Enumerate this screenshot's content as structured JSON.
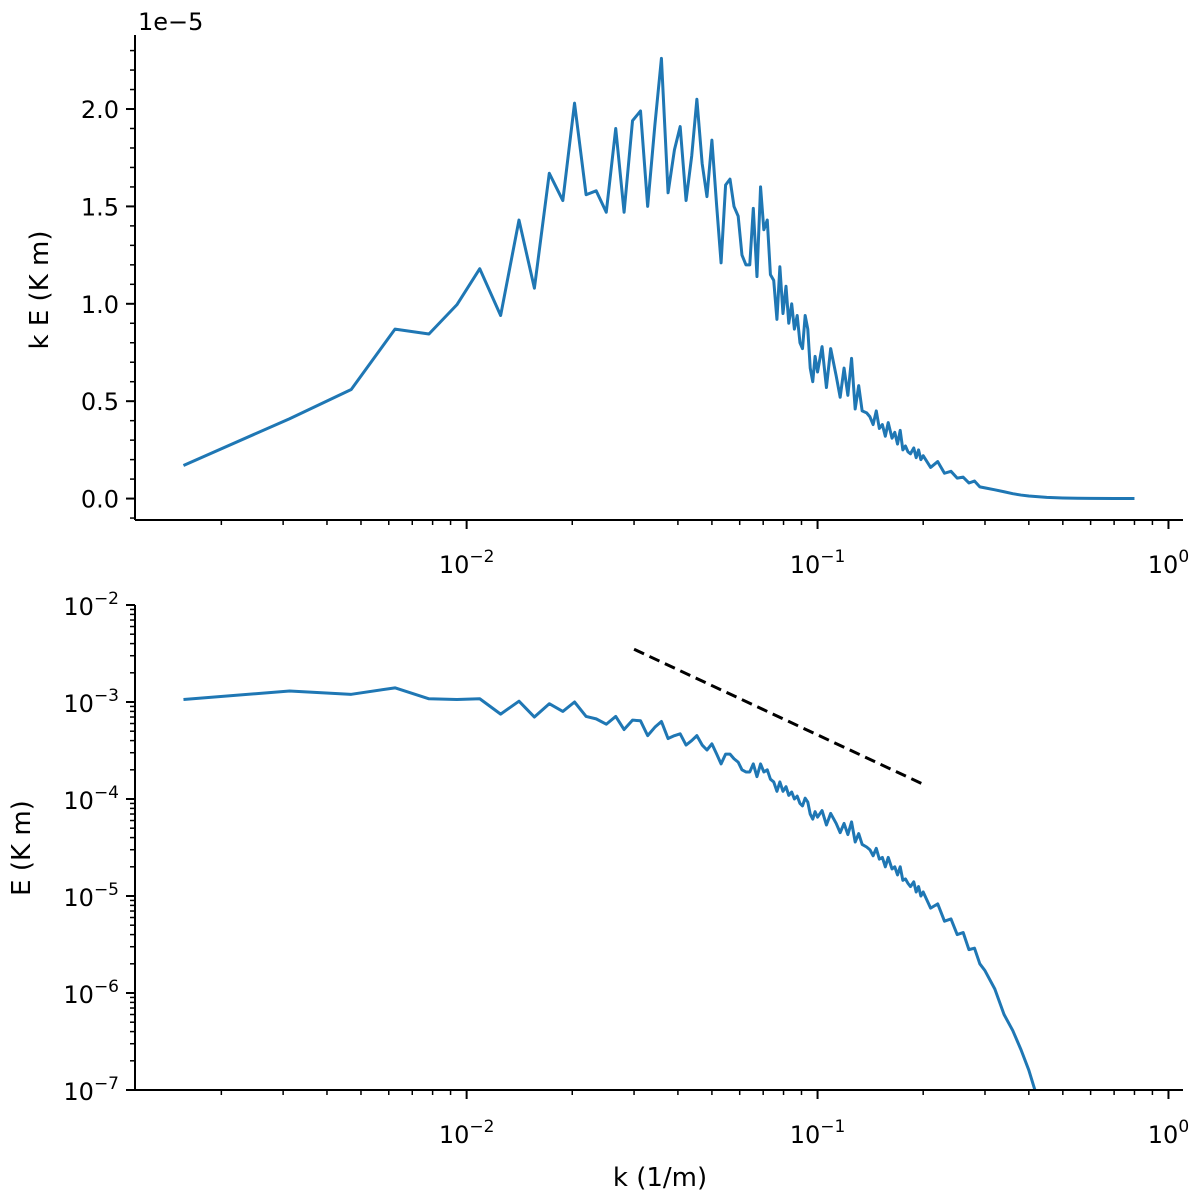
{
  "chart_data": [
    {
      "type": "line",
      "panel": "top",
      "ylabel": "k E (K m)",
      "xlabel": "",
      "offset_label": "1e−5",
      "x_scale": "log",
      "y_scale": "linear",
      "xlim": [
        0.00115,
        1.1
      ],
      "ylim": [
        -1.1e-06,
        2.38e-05
      ],
      "y_ticks": [
        0,
        5e-06,
        1e-05,
        1.5e-05,
        2e-05
      ],
      "y_tick_labels": [
        "0.0",
        "0.5",
        "1.0",
        "1.5",
        "2.0"
      ],
      "x_ticks": [
        0.01,
        0.1,
        1
      ],
      "x_tick_labels": [
        {
          "base": "10",
          "exp": "−2"
        },
        {
          "base": "10",
          "exp": "−1"
        },
        {
          "base": "10",
          "exp": "0"
        }
      ],
      "grid": false,
      "color": "#1f77b4",
      "series": [
        {
          "x": [
            0.00156,
            0.00313,
            0.00469,
            0.00625,
            0.00781,
            0.00938,
            0.0109,
            0.0125,
            0.0141,
            0.0156,
            0.0172,
            0.0188,
            0.0203,
            0.0219,
            0.0234,
            0.025,
            0.0266,
            0.0281,
            0.0297,
            0.0313,
            0.0328,
            0.0344,
            0.0359,
            0.0375,
            0.0391,
            0.0406,
            0.0422,
            0.0438,
            0.0453,
            0.0469,
            0.0484,
            0.05,
            0.0516,
            0.0531,
            0.0547,
            0.0563,
            0.0578,
            0.0594,
            0.0609,
            0.0625,
            0.0641,
            0.0656,
            0.0672,
            0.0688,
            0.0703,
            0.0719,
            0.0734,
            0.075,
            0.0766,
            0.0781,
            0.0797,
            0.0813,
            0.0828,
            0.0844,
            0.0859,
            0.0875,
            0.0891,
            0.0906,
            0.0922,
            0.0938,
            0.0953,
            0.0969,
            0.0984,
            0.1,
            0.103,
            0.106,
            0.109,
            0.113,
            0.116,
            0.119,
            0.122,
            0.125,
            0.128,
            0.131,
            0.134,
            0.138,
            0.141,
            0.144,
            0.147,
            0.15,
            0.153,
            0.156,
            0.159,
            0.163,
            0.166,
            0.169,
            0.172,
            0.175,
            0.178,
            0.181,
            0.184,
            0.188,
            0.191,
            0.194,
            0.197,
            0.2,
            0.21,
            0.22,
            0.23,
            0.24,
            0.25,
            0.26,
            0.27,
            0.28,
            0.29,
            0.3,
            0.32,
            0.34,
            0.36,
            0.38,
            0.4,
            0.45,
            0.5,
            0.55,
            0.6,
            0.7,
            0.8
          ],
          "y": [
            1.7e-06,
            4.1e-06,
            5.6e-06,
            8.7e-06,
            8.45e-06,
            9.95e-06,
            1.18e-05,
            9.4e-06,
            1.43e-05,
            1.08e-05,
            1.67e-05,
            1.53e-05,
            2.03e-05,
            1.56e-05,
            1.58e-05,
            1.47e-05,
            1.9e-05,
            1.47e-05,
            1.94e-05,
            1.99e-05,
            1.5e-05,
            1.92e-05,
            2.26e-05,
            1.57e-05,
            1.79e-05,
            1.91e-05,
            1.53e-05,
            1.76e-05,
            2.05e-05,
            1.72e-05,
            1.55e-05,
            1.84e-05,
            1.5e-05,
            1.21e-05,
            1.61e-05,
            1.64e-05,
            1.5e-05,
            1.45e-05,
            1.25e-05,
            1.2e-05,
            1.2e-05,
            1.49e-05,
            1.14e-05,
            1.6e-05,
            1.38e-05,
            1.43e-05,
            1.15e-05,
            1.12e-05,
            9.2e-06,
            1.19e-05,
            9.5e-06,
            1.09e-05,
            9e-06,
            1e-05,
            8.7e-06,
            9.4e-06,
            8e-06,
            7.7e-06,
            9.4e-06,
            8.7e-06,
            6.7e-06,
            6e-06,
            7.3e-06,
            6.5e-06,
            7.8e-06,
            5.7e-06,
            7.7e-06,
            6.3e-06,
            5.2e-06,
            6.7e-06,
            5.3e-06,
            7.2e-06,
            4.6e-06,
            5.8e-06,
            4.5e-06,
            4.4e-06,
            4.2e-06,
            3.8e-06,
            4.5e-06,
            3.6e-06,
            3.8e-06,
            3.2e-06,
            3.9e-06,
            3.1e-06,
            3.4e-06,
            2.8e-06,
            3.5e-06,
            2.5e-06,
            2.7e-06,
            2.4e-06,
            2.3e-06,
            2.6e-06,
            2.1e-06,
            2.5e-06,
            2e-06,
            2.2e-06,
            1.6e-06,
            1.9e-06,
            1.3e-06,
            1.4e-06,
            1.05e-06,
            1.1e-06,
            8e-07,
            9e-07,
            6e-07,
            5.5e-07,
            4.5e-07,
            3.5e-07,
            2.5e-07,
            1.8e-07,
            1.3e-07,
            6e-08,
            3e-08,
            1.5e-08,
            1e-08,
            5e-09,
            3e-09
          ]
        }
      ]
    },
    {
      "type": "line",
      "panel": "bottom",
      "ylabel": "E (K m)",
      "xlabel": "k (1/m)",
      "x_scale": "log",
      "y_scale": "log",
      "xlim": [
        0.00115,
        1.1
      ],
      "ylim": [
        1e-07,
        0.01
      ],
      "y_ticks": [
        1e-07,
        1e-06,
        1e-05,
        0.0001,
        0.001,
        0.01
      ],
      "y_tick_labels": [
        {
          "base": "10",
          "exp": "−7"
        },
        {
          "base": "10",
          "exp": "−6"
        },
        {
          "base": "10",
          "exp": "−5"
        },
        {
          "base": "10",
          "exp": "−4"
        },
        {
          "base": "10",
          "exp": "−3"
        },
        {
          "base": "10",
          "exp": "−2"
        }
      ],
      "x_ticks": [
        0.01,
        0.1,
        1
      ],
      "x_tick_labels": [
        {
          "base": "10",
          "exp": "−2"
        },
        {
          "base": "10",
          "exp": "−1"
        },
        {
          "base": "10",
          "exp": "0"
        }
      ],
      "grid": false,
      "color": "#1f77b4",
      "series": [
        {
          "x": [
            0.00156,
            0.00313,
            0.00469,
            0.00625,
            0.00781,
            0.00938,
            0.0109,
            0.0125,
            0.0141,
            0.0156,
            0.0172,
            0.0188,
            0.0203,
            0.0219,
            0.0234,
            0.025,
            0.0266,
            0.0281,
            0.0297,
            0.0313,
            0.0328,
            0.0344,
            0.0359,
            0.0375,
            0.0391,
            0.0406,
            0.0422,
            0.0438,
            0.0453,
            0.0469,
            0.0484,
            0.05,
            0.0516,
            0.0531,
            0.0547,
            0.0563,
            0.0578,
            0.0594,
            0.0609,
            0.0625,
            0.0641,
            0.0656,
            0.0672,
            0.0688,
            0.0703,
            0.0719,
            0.0734,
            0.075,
            0.0766,
            0.0781,
            0.0797,
            0.0813,
            0.0828,
            0.0844,
            0.0859,
            0.0875,
            0.0891,
            0.0906,
            0.0922,
            0.0938,
            0.0953,
            0.0969,
            0.0984,
            0.1,
            0.103,
            0.106,
            0.109,
            0.113,
            0.116,
            0.119,
            0.122,
            0.125,
            0.128,
            0.131,
            0.134,
            0.138,
            0.141,
            0.144,
            0.147,
            0.15,
            0.153,
            0.156,
            0.159,
            0.163,
            0.166,
            0.169,
            0.172,
            0.175,
            0.178,
            0.181,
            0.184,
            0.188,
            0.191,
            0.194,
            0.197,
            0.2,
            0.21,
            0.22,
            0.23,
            0.24,
            0.25,
            0.26,
            0.27,
            0.28,
            0.29,
            0.3,
            0.32,
            0.34,
            0.36,
            0.38,
            0.4,
            0.42
          ],
          "y": [
            0.00106,
            0.0013,
            0.0012,
            0.0014,
            0.00108,
            0.00106,
            0.00108,
            0.00075,
            0.00102,
            0.0007,
            0.00096,
            0.0008,
            0.001,
            0.00071,
            0.00067,
            0.00059,
            0.00071,
            0.00052,
            0.00065,
            0.00064,
            0.00045,
            0.00055,
            0.00063,
            0.00042,
            0.00045,
            0.00047,
            0.00036,
            0.0004,
            0.00045,
            0.00036,
            0.00032,
            0.00037,
            0.00029,
            0.00023,
            0.00029,
            0.00029,
            0.00026,
            0.00024,
            0.0002,
            0.00019,
            0.00019,
            0.00023,
            0.00017,
            0.00023,
            0.00019,
            0.0002,
            0.00016,
            0.00015,
            0.00012,
            0.00015,
            0.00012,
            0.000134,
            0.000109,
            0.000118,
            0.0001,
            0.000107,
            9e-05,
            8.5e-05,
            0.000102,
            9.3e-05,
            7e-05,
            6.2e-05,
            7.4e-05,
            6.5e-05,
            7.6e-05,
            5.4e-05,
            7.1e-05,
            5.6e-05,
            4.5e-05,
            5.6e-05,
            4.3e-05,
            5.8e-05,
            3.6e-05,
            4.4e-05,
            3.4e-05,
            3.2e-05,
            3e-05,
            2.6e-05,
            3.1e-05,
            2.4e-05,
            2.5e-05,
            2e-05,
            2.5e-05,
            1.9e-05,
            2e-05,
            1.65e-05,
            2e-05,
            1.45e-05,
            1.5e-05,
            1.35e-05,
            1.25e-05,
            1.4e-05,
            1.1e-05,
            1.25e-05,
            1e-05,
            1.1e-05,
            7.5e-06,
            8.3e-06,
            5.5e-06,
            5.8e-06,
            4e-06,
            4.2e-06,
            2.8e-06,
            2.9e-06,
            2e-06,
            1.7e-06,
            1.1e-06,
            6e-07,
            4.1e-07,
            2.6e-07,
            1.6e-07,
            9e-08
          ]
        },
        {
          "style": "dashed",
          "color": "#000000",
          "x": [
            0.03,
            0.2
          ],
          "y": [
            0.0035,
            0.000142
          ]
        }
      ]
    }
  ]
}
